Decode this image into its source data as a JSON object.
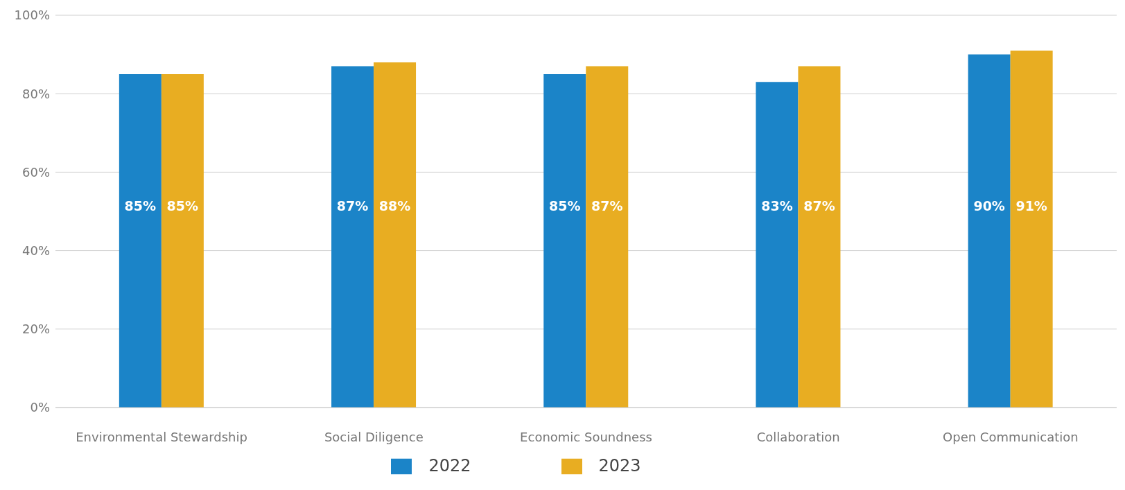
{
  "chart_data": {
    "type": "bar",
    "categories": [
      "Environmental Stewardship",
      "Social Diligence",
      "Economic Soundness",
      "Collaboration",
      "Open Communication"
    ],
    "series": [
      {
        "name": "2022",
        "color": "#1b84c8",
        "values": [
          85,
          87,
          85,
          83,
          90
        ],
        "value_labels": [
          "85%",
          "87%",
          "85%",
          "83%",
          "90%"
        ]
      },
      {
        "name": "2023",
        "color": "#e8ad22",
        "values": [
          85,
          88,
          87,
          87,
          91
        ],
        "value_labels": [
          "85%",
          "88%",
          "87%",
          "87%",
          "91%"
        ]
      }
    ],
    "ylim": [
      0,
      100
    ],
    "yticks": [
      {
        "value": 0,
        "label": "0%"
      },
      {
        "value": 20,
        "label": "20%"
      },
      {
        "value": 40,
        "label": "40%"
      },
      {
        "value": 60,
        "label": "60%"
      },
      {
        "value": 80,
        "label": "80%"
      },
      {
        "value": 100,
        "label": "100%"
      }
    ],
    "grid": "y",
    "legend": "bottom"
  }
}
